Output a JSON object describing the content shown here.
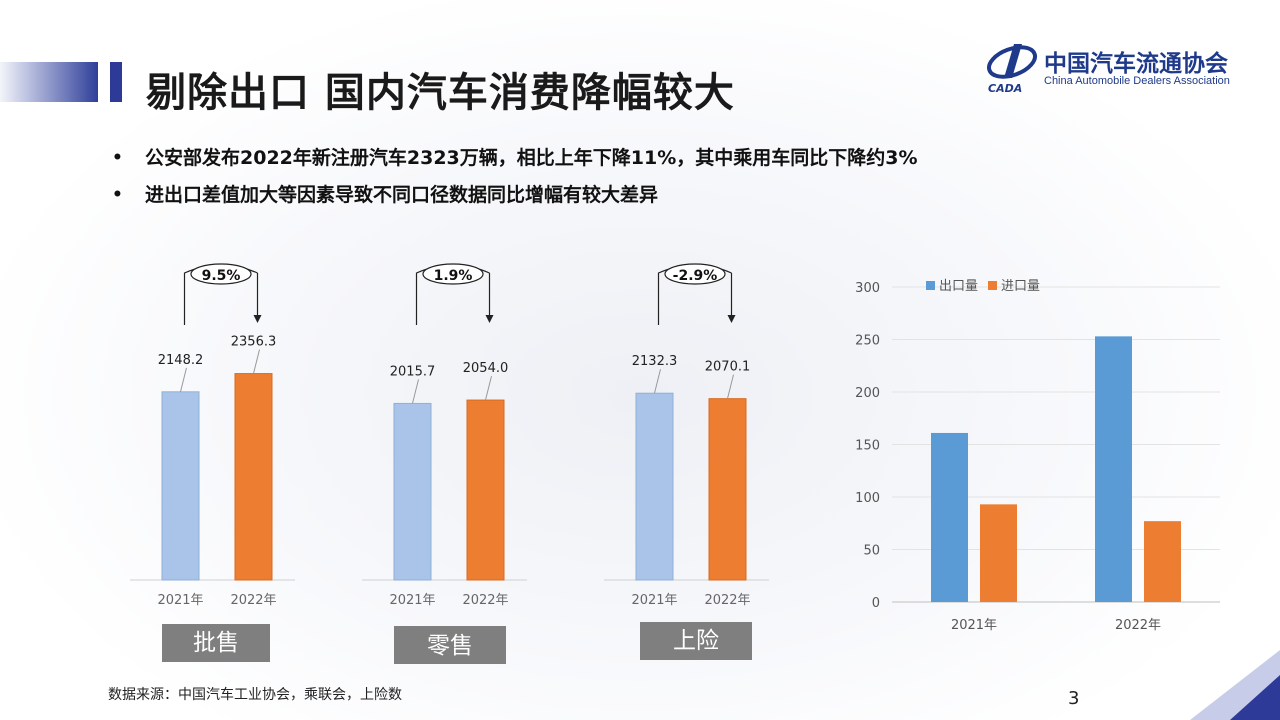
{
  "title": "剔除出口 国内汽车消费降幅较大",
  "logo": {
    "cn": "中国汽车流通协会",
    "en": "China Automobile Dealers Association",
    "mark": "CADA"
  },
  "bullets": [
    {
      "symbol": "•",
      "text": "公安部发布2022年新注册汽车2323万辆，相比上年下降11%，其中乘用车同比下降约3%"
    },
    {
      "symbol": "•",
      "text": "进出口差值加大等因素导致不同口径数据同比增幅有较大差异"
    }
  ],
  "footer": "数据来源：中国汽车工业协会，乘联会，上险数",
  "page_number": "3",
  "colors": {
    "light_blue": "#a9c4e8",
    "orange": "#ed7d31",
    "blue": "#5b9bd5",
    "title_blue": "#2d3a97"
  },
  "chart_data": [
    {
      "type": "bar",
      "categories": [
        "2021年",
        "2022年"
      ],
      "values": [
        2148.2,
        2356.3
      ],
      "bar_colors": [
        "#a9c4e8",
        "#ed7d31"
      ],
      "growth": "9.5%",
      "label": "批售"
    },
    {
      "type": "bar",
      "categories": [
        "2021年",
        "2022年"
      ],
      "values": [
        2015.7,
        2054.0
      ],
      "value_labels": [
        "2015.7",
        "2054.0"
      ],
      "bar_colors": [
        "#a9c4e8",
        "#ed7d31"
      ],
      "growth": "1.9%",
      "label": "零售"
    },
    {
      "type": "bar",
      "categories": [
        "2021年",
        "2022年"
      ],
      "values": [
        2132.3,
        2070.1
      ],
      "bar_colors": [
        "#a9c4e8",
        "#ed7d31"
      ],
      "growth": "-2.9%",
      "label": "上险"
    },
    {
      "type": "bar",
      "categories": [
        "2021年",
        "2022年"
      ],
      "series": [
        {
          "name": "出口量",
          "values": [
            161,
            253
          ],
          "color": "#5b9bd5"
        },
        {
          "name": "进口量",
          "values": [
            93,
            77
          ],
          "color": "#ed7d31"
        }
      ],
      "ylim": [
        0,
        300
      ],
      "yticks": [
        0,
        50,
        100,
        150,
        200,
        250,
        300
      ],
      "grid": true,
      "legend": "top-left"
    }
  ]
}
